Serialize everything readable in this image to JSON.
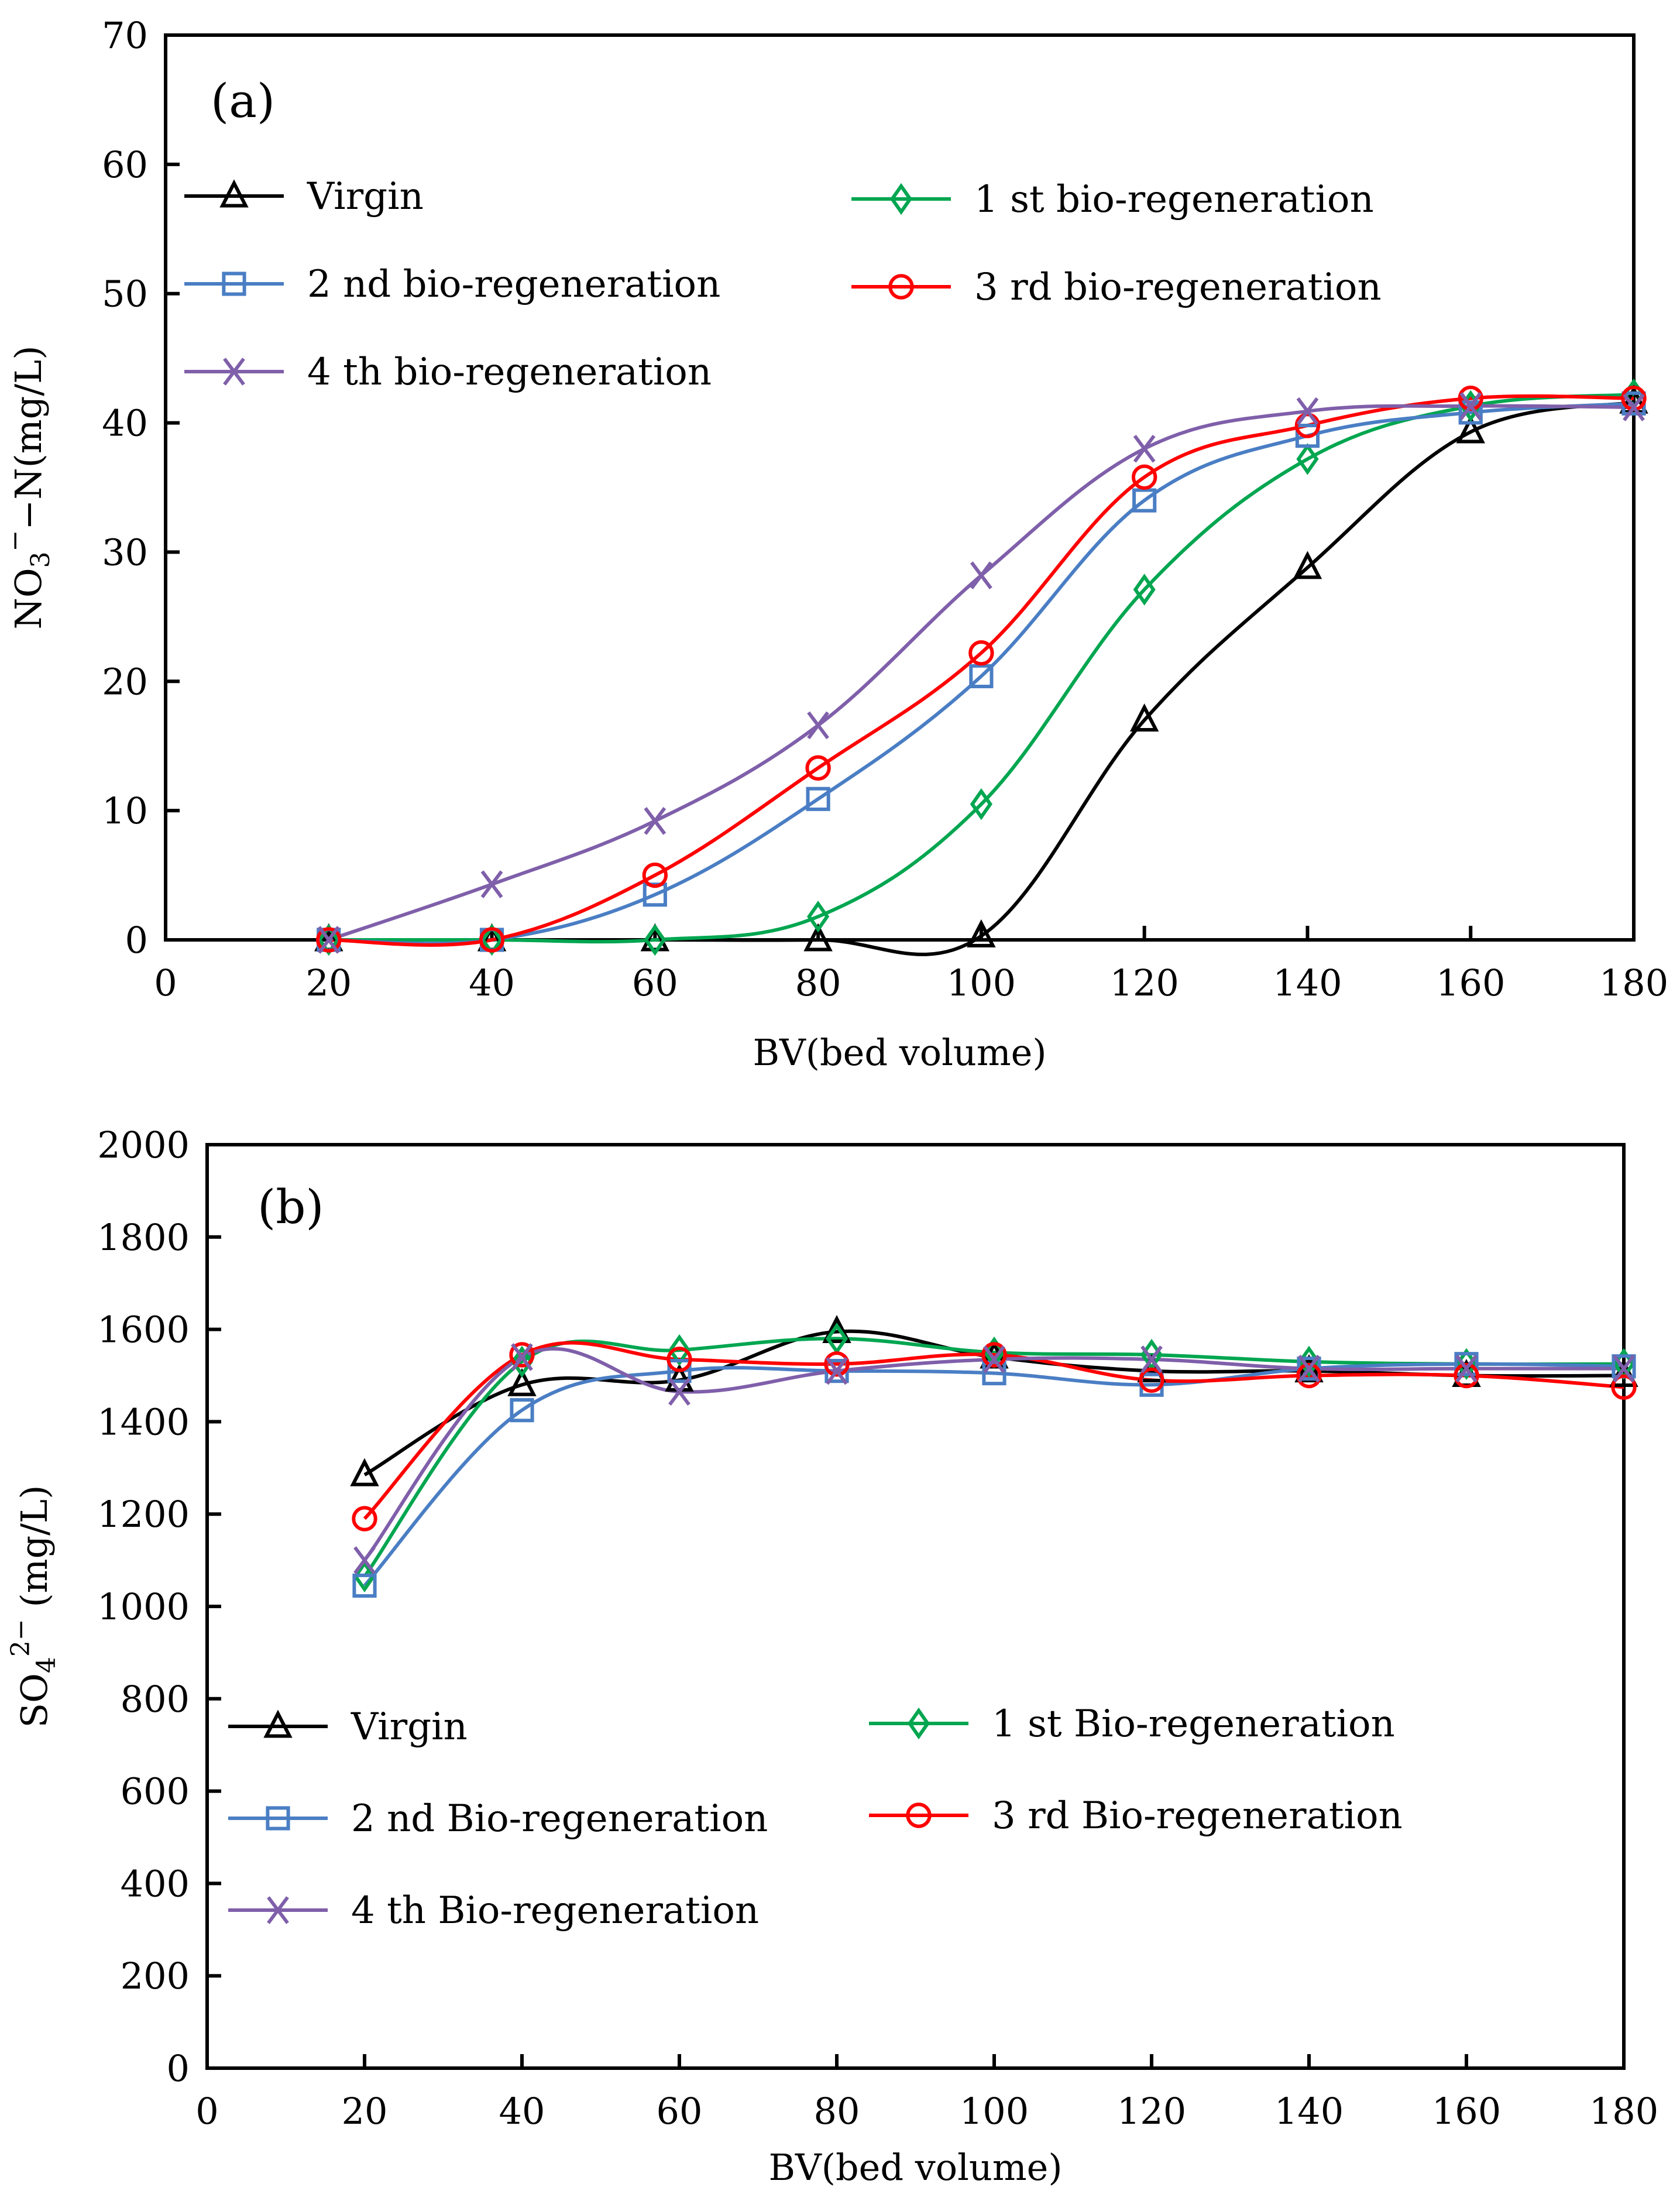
{
  "chart_data": [
    {
      "type": "line",
      "panel_label": "(a)",
      "title": "",
      "xlabel": "BV(bed volume)",
      "ylabel": "NO3−−N(mg/L)",
      "ylabel_parts": {
        "base": "NO",
        "sub": "3",
        "sup": "−",
        "rest": "−N(mg/L)"
      },
      "xlim": [
        0,
        180
      ],
      "ylim": [
        0,
        70
      ],
      "xticks": [
        0,
        20,
        40,
        60,
        80,
        100,
        120,
        140,
        160,
        180
      ],
      "yticks": [
        0,
        10,
        20,
        30,
        40,
        50,
        60,
        70
      ],
      "grid": false,
      "legend_placement": "top-left",
      "x": [
        20,
        40,
        60,
        80,
        100,
        120,
        140,
        160,
        180
      ],
      "series": [
        {
          "name": "Virgin",
          "marker": "triangle",
          "color": "#000000",
          "values": [
            0,
            0,
            0,
            0,
            0.3,
            17,
            28.8,
            39.3,
            41.6
          ]
        },
        {
          "name": "1 st bio-regeneration",
          "marker": "diamond",
          "color": "#00a650",
          "values": [
            0,
            0,
            0,
            1.8,
            10.5,
            27.1,
            37.2,
            41.3,
            42.2
          ]
        },
        {
          "name": "2 nd bio-regeneration",
          "marker": "square",
          "color": "#4a7ec4",
          "values": [
            0,
            0,
            3.5,
            10.9,
            20.4,
            34,
            39,
            40.8,
            41.5
          ]
        },
        {
          "name": "3 rd bio-regeneration",
          "marker": "circle",
          "color": "#ff0000",
          "values": [
            0,
            0,
            5,
            13.3,
            22.2,
            35.8,
            39.8,
            41.9,
            41.9
          ]
        },
        {
          "name": "4 th bio-regeneration",
          "marker": "x",
          "color": "#7f5faa",
          "values": [
            0,
            4.3,
            9.2,
            16.6,
            28.2,
            38,
            40.9,
            41.3,
            41.2
          ]
        }
      ]
    },
    {
      "type": "line",
      "panel_label": "(b)",
      "title": "",
      "xlabel": "BV(bed volume)",
      "ylabel": "SO42− (mg/L)",
      "ylabel_parts": {
        "base": "SO",
        "sub": "4",
        "sup": "2−",
        "rest": " (mg/L)"
      },
      "xlim": [
        0,
        180
      ],
      "ylim": [
        0,
        2000
      ],
      "xticks": [
        0,
        20,
        40,
        60,
        80,
        100,
        120,
        140,
        160,
        180
      ],
      "yticks": [
        0,
        200,
        400,
        600,
        800,
        1000,
        1200,
        1400,
        1600,
        1800,
        2000
      ],
      "grid": false,
      "legend_placement": "bottom-left",
      "x": [
        20,
        40,
        60,
        80,
        100,
        120,
        140,
        160,
        180
      ],
      "series": [
        {
          "name": "Virgin",
          "marker": "triangle",
          "color": "#000000",
          "values": [
            1285,
            1480,
            1490,
            1595,
            1540,
            1510,
            1510,
            1500,
            1500
          ]
        },
        {
          "name": "1 st Bio-regeneration",
          "marker": "diamond",
          "color": "#00a650",
          "values": [
            1065,
            1530,
            1555,
            1580,
            1550,
            1545,
            1530,
            1525,
            1525
          ]
        },
        {
          "name": "2 nd Bio-regeneration",
          "marker": "square",
          "color": "#4a7ec4",
          "values": [
            1045,
            1425,
            1510,
            1510,
            1505,
            1480,
            1515,
            1525,
            1520
          ]
        },
        {
          "name": "3 rd Bio-regeneration",
          "marker": "circle",
          "color": "#ff0000",
          "values": [
            1190,
            1545,
            1535,
            1525,
            1545,
            1490,
            1500,
            1500,
            1475
          ]
        },
        {
          "name": "4 th Bio-regeneration",
          "marker": "x",
          "color": "#7f5faa",
          "values": [
            1100,
            1540,
            1465,
            1510,
            1535,
            1535,
            1515,
            1515,
            1515
          ]
        }
      ]
    }
  ]
}
